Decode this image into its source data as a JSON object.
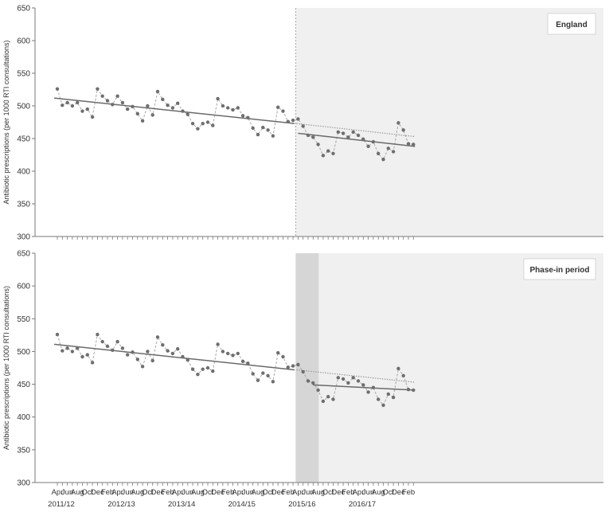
{
  "colors": {
    "axis": "#7a7a7a",
    "point": "#6e6e6e",
    "seasonal_line": "#a8a8a8",
    "trend_line": "#6a6a6a",
    "counterfactual_line": "#9a9a9a",
    "post_shade": "#f0f0f0",
    "phase_in_shade": "#d6d6d6",
    "intervention_line": "#9a9a9a"
  },
  "chart_data": [
    {
      "type": "line",
      "panel_label": "England",
      "ylabel": "Antibiotic prescriptions (per 1000 RTI consultations)",
      "ylim": [
        300,
        650
      ],
      "y_ticks": [
        300,
        350,
        400,
        450,
        500,
        550,
        600,
        650
      ],
      "x_month_labels": [
        "Apr",
        "Jun",
        "Aug",
        "Oct",
        "Dec",
        "Feb",
        "Apr",
        "Jun",
        "Aug",
        "Oct",
        "Dec",
        "Feb",
        "Apr",
        "Jun",
        "Aug",
        "Oct",
        "Dec",
        "Feb",
        "Apr",
        "Jun",
        "Aug",
        "Oct",
        "Dec",
        "Feb",
        "Apr",
        "Jun",
        "Aug",
        "Oct",
        "Dec",
        "Feb",
        "Apr",
        "Jun",
        "Aug",
        "Oct",
        "Dec",
        "Feb"
      ],
      "x_year_labels": [
        "2011/12",
        "2012/13",
        "2013/14",
        "2014/15",
        "2015/16",
        "2016/17"
      ],
      "values": [
        526,
        501,
        505,
        500,
        505,
        492,
        495,
        483,
        526,
        515,
        508,
        502,
        515,
        505,
        495,
        499,
        488,
        477,
        500,
        486,
        522,
        510,
        501,
        497,
        504,
        492,
        487,
        473,
        465,
        473,
        475,
        470,
        511,
        500,
        497,
        494,
        497,
        485,
        482,
        466,
        456,
        467,
        463,
        454,
        498,
        492,
        476,
        478,
        480,
        469,
        455,
        452,
        441,
        424,
        431,
        427,
        460,
        458,
        452,
        460,
        455,
        449,
        438,
        445,
        427,
        418,
        435,
        430,
        474,
        463,
        442,
        441
      ],
      "trend_pre": {
        "start": 512,
        "end": 473
      },
      "trend_post": {
        "start": 458,
        "end": 438
      },
      "counterfactual": {
        "start": 473,
        "end": 453
      },
      "intervention_index": 48,
      "phase_in_months": 0
    },
    {
      "type": "line",
      "panel_label": "Phase-in period",
      "ylabel": "Antibiotic prescriptions (per 1000 RTI consultations)",
      "ylim": [
        300,
        650
      ],
      "y_ticks": [
        300,
        350,
        400,
        450,
        500,
        550,
        600,
        650
      ],
      "x_month_labels": [
        "Apr",
        "Jun",
        "Aug",
        "Oct",
        "Dec",
        "Feb",
        "Apr",
        "Jun",
        "Aug",
        "Oct",
        "Dec",
        "Feb",
        "Apr",
        "Jun",
        "Aug",
        "Oct",
        "Dec",
        "Feb",
        "Apr",
        "Jun",
        "Aug",
        "Oct",
        "Dec",
        "Feb",
        "Apr",
        "Jun",
        "Aug",
        "Oct",
        "Dec",
        "Feb",
        "Apr",
        "Jun",
        "Aug",
        "Oct",
        "Dec",
        "Feb"
      ],
      "x_year_labels": [
        "2011/12",
        "2012/13",
        "2013/14",
        "2014/15",
        "2015/16",
        "2016/17"
      ],
      "values": [
        526,
        501,
        505,
        500,
        505,
        492,
        495,
        483,
        526,
        515,
        508,
        502,
        515,
        505,
        495,
        499,
        488,
        477,
        500,
        486,
        522,
        510,
        501,
        497,
        504,
        492,
        487,
        473,
        465,
        473,
        475,
        470,
        511,
        500,
        497,
        494,
        497,
        485,
        482,
        466,
        456,
        467,
        463,
        454,
        498,
        492,
        476,
        478,
        480,
        469,
        455,
        452,
        441,
        424,
        431,
        427,
        460,
        458,
        452,
        460,
        455,
        449,
        438,
        445,
        427,
        418,
        435,
        430,
        474,
        463,
        442,
        441
      ],
      "trend_pre": {
        "start": 511,
        "end": 472
      },
      "trend_post": {
        "start": 449,
        "end": 441
      },
      "counterfactual": {
        "start": 472,
        "end": 453
      },
      "intervention_index": 48,
      "phase_in_months": 3
    }
  ]
}
